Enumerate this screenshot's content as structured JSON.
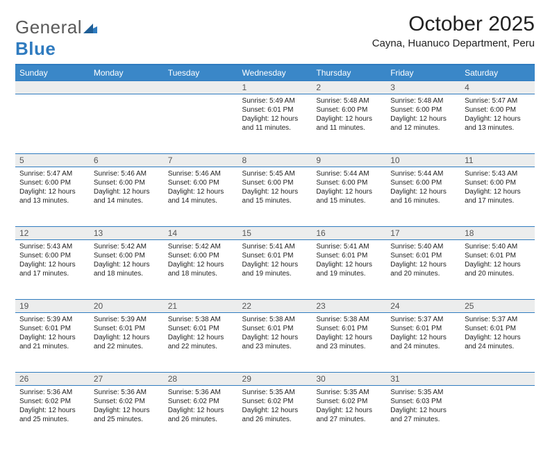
{
  "logo": {
    "general": "General",
    "blue": "Blue"
  },
  "title": "October 2025",
  "location": "Cayna, Huanuco Department, Peru",
  "colors": {
    "header_bg": "#3a87c8",
    "header_text": "#ffffff",
    "accent_border": "#2f7bbf",
    "daynum_bg": "#eceded",
    "body_text": "#222222",
    "logo_gray": "#5a5a5a",
    "logo_blue": "#2f7bbf"
  },
  "weekdays": [
    "Sunday",
    "Monday",
    "Tuesday",
    "Wednesday",
    "Thursday",
    "Friday",
    "Saturday"
  ],
  "weeks": [
    {
      "nums": [
        "",
        "",
        "",
        "1",
        "2",
        "3",
        "4"
      ],
      "cells": [
        null,
        null,
        null,
        {
          "sunrise": "Sunrise: 5:49 AM",
          "sunset": "Sunset: 6:01 PM",
          "day": "Daylight: 12 hours and 11 minutes."
        },
        {
          "sunrise": "Sunrise: 5:48 AM",
          "sunset": "Sunset: 6:00 PM",
          "day": "Daylight: 12 hours and 11 minutes."
        },
        {
          "sunrise": "Sunrise: 5:48 AM",
          "sunset": "Sunset: 6:00 PM",
          "day": "Daylight: 12 hours and 12 minutes."
        },
        {
          "sunrise": "Sunrise: 5:47 AM",
          "sunset": "Sunset: 6:00 PM",
          "day": "Daylight: 12 hours and 13 minutes."
        }
      ]
    },
    {
      "nums": [
        "5",
        "6",
        "7",
        "8",
        "9",
        "10",
        "11"
      ],
      "cells": [
        {
          "sunrise": "Sunrise: 5:47 AM",
          "sunset": "Sunset: 6:00 PM",
          "day": "Daylight: 12 hours and 13 minutes."
        },
        {
          "sunrise": "Sunrise: 5:46 AM",
          "sunset": "Sunset: 6:00 PM",
          "day": "Daylight: 12 hours and 14 minutes."
        },
        {
          "sunrise": "Sunrise: 5:46 AM",
          "sunset": "Sunset: 6:00 PM",
          "day": "Daylight: 12 hours and 14 minutes."
        },
        {
          "sunrise": "Sunrise: 5:45 AM",
          "sunset": "Sunset: 6:00 PM",
          "day": "Daylight: 12 hours and 15 minutes."
        },
        {
          "sunrise": "Sunrise: 5:44 AM",
          "sunset": "Sunset: 6:00 PM",
          "day": "Daylight: 12 hours and 15 minutes."
        },
        {
          "sunrise": "Sunrise: 5:44 AM",
          "sunset": "Sunset: 6:00 PM",
          "day": "Daylight: 12 hours and 16 minutes."
        },
        {
          "sunrise": "Sunrise: 5:43 AM",
          "sunset": "Sunset: 6:00 PM",
          "day": "Daylight: 12 hours and 17 minutes."
        }
      ]
    },
    {
      "nums": [
        "12",
        "13",
        "14",
        "15",
        "16",
        "17",
        "18"
      ],
      "cells": [
        {
          "sunrise": "Sunrise: 5:43 AM",
          "sunset": "Sunset: 6:00 PM",
          "day": "Daylight: 12 hours and 17 minutes."
        },
        {
          "sunrise": "Sunrise: 5:42 AM",
          "sunset": "Sunset: 6:00 PM",
          "day": "Daylight: 12 hours and 18 minutes."
        },
        {
          "sunrise": "Sunrise: 5:42 AM",
          "sunset": "Sunset: 6:00 PM",
          "day": "Daylight: 12 hours and 18 minutes."
        },
        {
          "sunrise": "Sunrise: 5:41 AM",
          "sunset": "Sunset: 6:01 PM",
          "day": "Daylight: 12 hours and 19 minutes."
        },
        {
          "sunrise": "Sunrise: 5:41 AM",
          "sunset": "Sunset: 6:01 PM",
          "day": "Daylight: 12 hours and 19 minutes."
        },
        {
          "sunrise": "Sunrise: 5:40 AM",
          "sunset": "Sunset: 6:01 PM",
          "day": "Daylight: 12 hours and 20 minutes."
        },
        {
          "sunrise": "Sunrise: 5:40 AM",
          "sunset": "Sunset: 6:01 PM",
          "day": "Daylight: 12 hours and 20 minutes."
        }
      ]
    },
    {
      "nums": [
        "19",
        "20",
        "21",
        "22",
        "23",
        "24",
        "25"
      ],
      "cells": [
        {
          "sunrise": "Sunrise: 5:39 AM",
          "sunset": "Sunset: 6:01 PM",
          "day": "Daylight: 12 hours and 21 minutes."
        },
        {
          "sunrise": "Sunrise: 5:39 AM",
          "sunset": "Sunset: 6:01 PM",
          "day": "Daylight: 12 hours and 22 minutes."
        },
        {
          "sunrise": "Sunrise: 5:38 AM",
          "sunset": "Sunset: 6:01 PM",
          "day": "Daylight: 12 hours and 22 minutes."
        },
        {
          "sunrise": "Sunrise: 5:38 AM",
          "sunset": "Sunset: 6:01 PM",
          "day": "Daylight: 12 hours and 23 minutes."
        },
        {
          "sunrise": "Sunrise: 5:38 AM",
          "sunset": "Sunset: 6:01 PM",
          "day": "Daylight: 12 hours and 23 minutes."
        },
        {
          "sunrise": "Sunrise: 5:37 AM",
          "sunset": "Sunset: 6:01 PM",
          "day": "Daylight: 12 hours and 24 minutes."
        },
        {
          "sunrise": "Sunrise: 5:37 AM",
          "sunset": "Sunset: 6:01 PM",
          "day": "Daylight: 12 hours and 24 minutes."
        }
      ]
    },
    {
      "nums": [
        "26",
        "27",
        "28",
        "29",
        "30",
        "31",
        ""
      ],
      "cells": [
        {
          "sunrise": "Sunrise: 5:36 AM",
          "sunset": "Sunset: 6:02 PM",
          "day": "Daylight: 12 hours and 25 minutes."
        },
        {
          "sunrise": "Sunrise: 5:36 AM",
          "sunset": "Sunset: 6:02 PM",
          "day": "Daylight: 12 hours and 25 minutes."
        },
        {
          "sunrise": "Sunrise: 5:36 AM",
          "sunset": "Sunset: 6:02 PM",
          "day": "Daylight: 12 hours and 26 minutes."
        },
        {
          "sunrise": "Sunrise: 5:35 AM",
          "sunset": "Sunset: 6:02 PM",
          "day": "Daylight: 12 hours and 26 minutes."
        },
        {
          "sunrise": "Sunrise: 5:35 AM",
          "sunset": "Sunset: 6:02 PM",
          "day": "Daylight: 12 hours and 27 minutes."
        },
        {
          "sunrise": "Sunrise: 5:35 AM",
          "sunset": "Sunset: 6:03 PM",
          "day": "Daylight: 12 hours and 27 minutes."
        },
        null
      ]
    }
  ]
}
